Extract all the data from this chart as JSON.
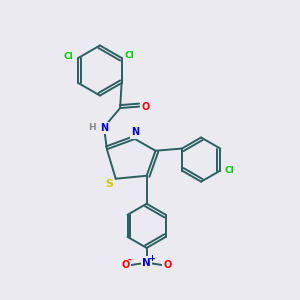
{
  "bg_color": "#eaeaf0",
  "bond_color": "#2a6060",
  "atom_colors": {
    "Cl": "#00cc00",
    "O": "#ff0000",
    "N": "#0000ee",
    "S": "#cccc00",
    "H": "#888888",
    "C": "#2a6060"
  }
}
